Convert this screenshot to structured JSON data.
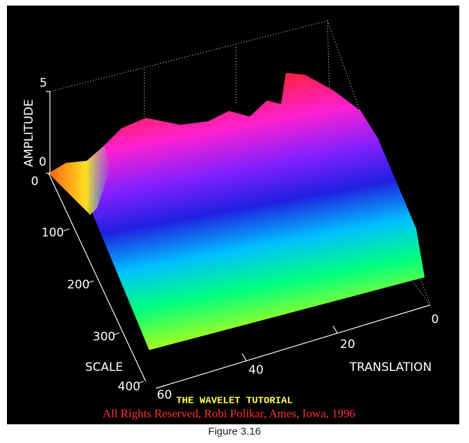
{
  "figure": {
    "z_axis": {
      "label": "AMPLITUDE",
      "ticks": [
        "5",
        "0"
      ]
    },
    "scale_axis": {
      "label": "SCALE",
      "ticks": [
        "0",
        "100",
        "200",
        "300",
        "400"
      ]
    },
    "translation_axis": {
      "label": "TRANSLATION",
      "ticks": [
        "0",
        "20",
        "40",
        "60"
      ]
    },
    "banner": "THE WAVELET TUTORIAL",
    "copyright": "All Rights Reserved, Robi Polikar, Ames, Iowa, 1996"
  },
  "caption": "Figure 3.16"
}
